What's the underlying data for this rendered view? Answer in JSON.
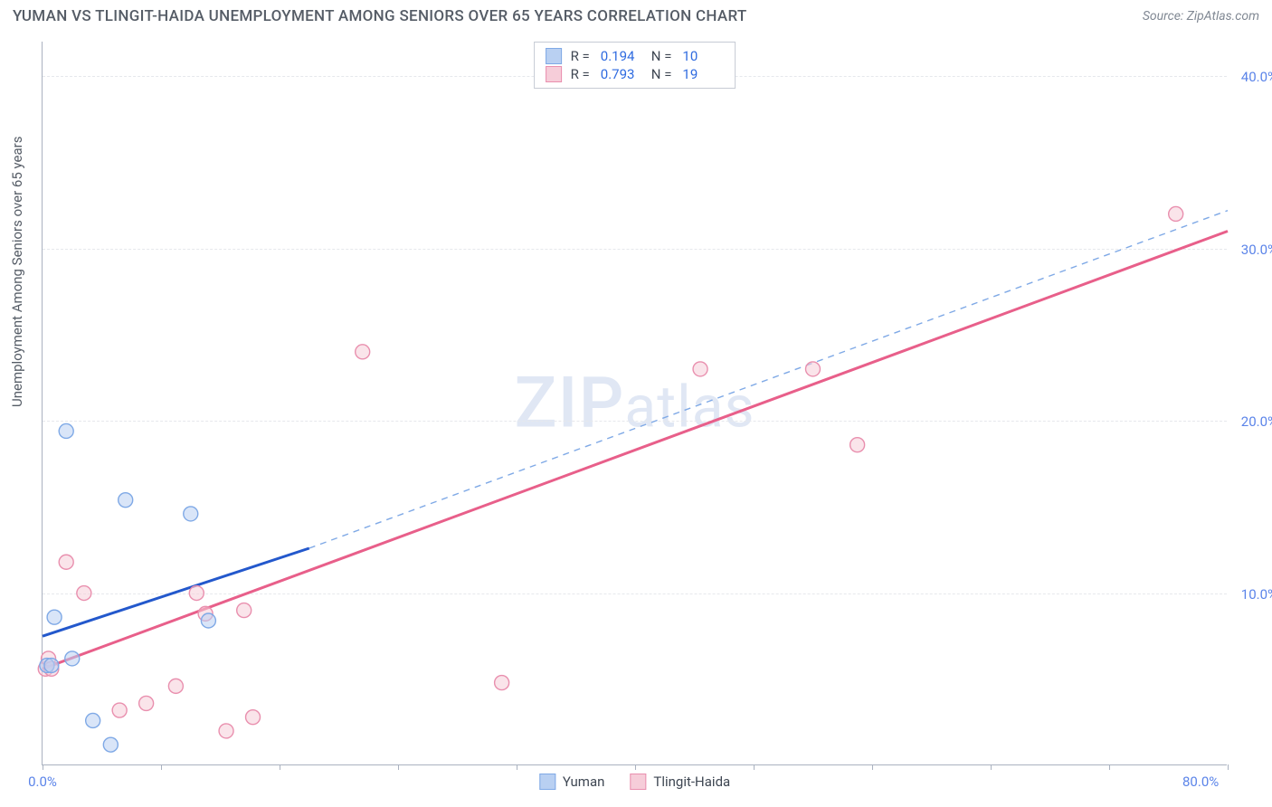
{
  "header": {
    "title": "YUMAN VS TLINGIT-HAIDA UNEMPLOYMENT AMONG SENIORS OVER 65 YEARS CORRELATION CHART",
    "source": "Source: ZipAtlas.com"
  },
  "ylabel": "Unemployment Among Seniors over 65 years",
  "watermark": {
    "big": "ZIP",
    "small": "atlas"
  },
  "chart": {
    "type": "scatter",
    "xlim": [
      0,
      80
    ],
    "ylim": [
      0,
      42
    ],
    "background_color": "#ffffff",
    "grid_color": "#e6e8ec",
    "axis_color": "#aab2c0",
    "tick_label_color": "#5b84e9",
    "yticks": [
      10,
      20,
      30,
      40
    ],
    "ytick_labels": [
      "10.0%",
      "20.0%",
      "30.0%",
      "40.0%"
    ],
    "xticks": [
      0,
      40,
      80
    ],
    "xtick_labels": [
      "0.0%",
      "",
      "80.0%"
    ],
    "xtick_minors": [
      8,
      16,
      24,
      32,
      48,
      56,
      64,
      72
    ],
    "marker_radius": 8,
    "marker_stroke_width": 1.4,
    "trend_line_width": 3,
    "dashed_line_width": 1.4,
    "series": {
      "yuman": {
        "label": "Yuman",
        "color_fill": "#b9d0f2",
        "color_stroke": "#7fa9e6",
        "trend_color": "#2358cc",
        "R": "0.194",
        "N": "10",
        "points": [
          [
            0.3,
            5.8
          ],
          [
            0.6,
            5.8
          ],
          [
            0.8,
            8.6
          ],
          [
            1.6,
            19.4
          ],
          [
            2.0,
            6.2
          ],
          [
            3.4,
            2.6
          ],
          [
            4.6,
            1.2
          ],
          [
            5.6,
            15.4
          ],
          [
            10.0,
            14.6
          ],
          [
            11.2,
            8.4
          ]
        ],
        "trend": {
          "x1": 0,
          "y1": 7.5,
          "x2": 18,
          "y2": 12.6
        },
        "dashed": {
          "x1": 18,
          "y1": 12.6,
          "x2": 80,
          "y2": 32.2
        }
      },
      "tlingit": {
        "label": "Tlingit-Haida",
        "color_fill": "#f6cdd9",
        "color_stroke": "#e98fae",
        "trend_color": "#e85f8a",
        "R": "0.793",
        "N": "19",
        "points": [
          [
            0.2,
            5.6
          ],
          [
            0.4,
            6.2
          ],
          [
            0.6,
            5.6
          ],
          [
            1.6,
            11.8
          ],
          [
            2.8,
            10.0
          ],
          [
            5.2,
            3.2
          ],
          [
            7.0,
            3.6
          ],
          [
            9.0,
            4.6
          ],
          [
            10.4,
            10.0
          ],
          [
            11.0,
            8.8
          ],
          [
            12.4,
            2.0
          ],
          [
            13.6,
            9.0
          ],
          [
            14.2,
            2.8
          ],
          [
            21.6,
            24.0
          ],
          [
            31.0,
            4.8
          ],
          [
            44.4,
            23.0
          ],
          [
            52.0,
            23.0
          ],
          [
            55.0,
            18.6
          ],
          [
            76.5,
            32.0
          ]
        ],
        "trend": {
          "x1": 0,
          "y1": 5.6,
          "x2": 80,
          "y2": 31.0
        }
      }
    }
  },
  "legend_top": {
    "r_label": "R  =",
    "n_label": "N  ="
  }
}
